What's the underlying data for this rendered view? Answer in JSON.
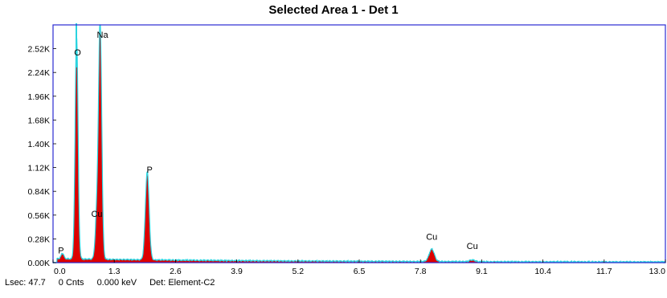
{
  "chart_data": {
    "type": "area",
    "title": "Selected Area 1 - Det 1",
    "xlabel": "",
    "ylabel": "",
    "x_unit": "keV",
    "xlim": [
      0.0,
      13.0
    ],
    "ylim": [
      0,
      2800
    ],
    "x_ticks": [
      "0.0",
      "1.3",
      "2.6",
      "3.9",
      "5.2",
      "6.5",
      "7.8",
      "9.1",
      "10.4",
      "11.7",
      "13.0"
    ],
    "y_ticks": [
      "0.00K",
      "0.28K",
      "0.56K",
      "0.84K",
      "1.12K",
      "1.40K",
      "1.68K",
      "1.96K",
      "2.24K",
      "2.52K"
    ],
    "y_tick_values": [
      0,
      280,
      560,
      840,
      1120,
      1400,
      1680,
      1960,
      2240,
      2520
    ],
    "grid": false,
    "legend": "none",
    "colors": {
      "fill": "#dd0000",
      "trace": "#2ad4e0",
      "frame": "#2b2bd1"
    },
    "series": [
      {
        "peaks": [
          {
            "x": 0.5,
            "y": 2520,
            "label": "O"
          },
          {
            "x": 1.0,
            "y": 2650,
            "label": "Na"
          },
          {
            "x": 0.93,
            "y": 470,
            "label": "Cu"
          },
          {
            "x": 2.0,
            "y": 1000,
            "label": "P"
          },
          {
            "x": 8.04,
            "y": 140,
            "label": "Cu"
          },
          {
            "x": 8.9,
            "y": 20,
            "label": "Cu"
          },
          {
            "x": 0.2,
            "y": 60,
            "label": "P"
          }
        ]
      }
    ],
    "peak_labels": [
      {
        "text": "O",
        "x": 0.52,
        "y": 2440
      },
      {
        "text": "Na",
        "x": 1.05,
        "y": 2650
      },
      {
        "text": "Cu",
        "x": 0.93,
        "y": 540
      },
      {
        "text": "P",
        "x": 2.05,
        "y": 1060
      },
      {
        "text": "Cu",
        "x": 8.04,
        "y": 270
      },
      {
        "text": "Cu",
        "x": 8.9,
        "y": 160
      },
      {
        "text": "P",
        "x": 0.17,
        "y": 110
      }
    ]
  },
  "status": {
    "lsec": "Lsec: 47.7",
    "counts": "0 Cnts",
    "energy": "0.000 keV",
    "detector": "Det: Element-C2"
  }
}
